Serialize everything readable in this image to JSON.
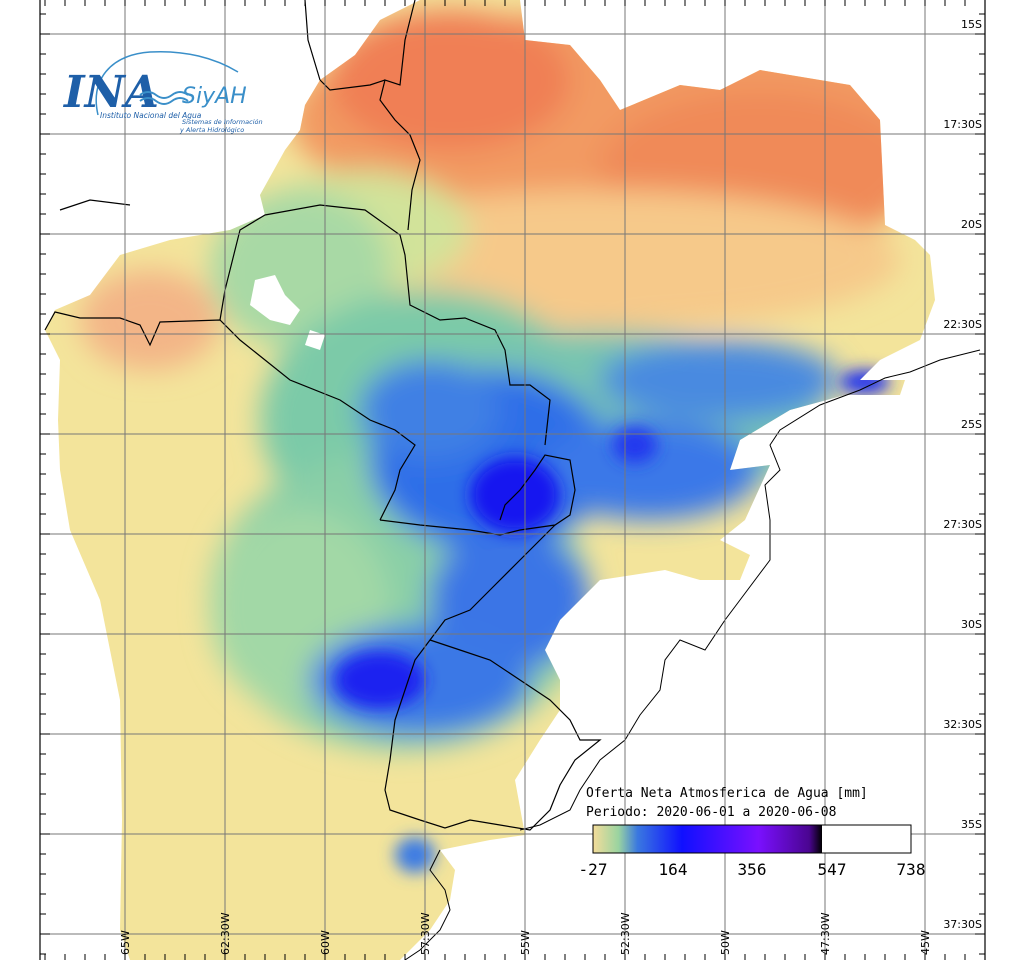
{
  "logo": {
    "org_abbrev": "INA",
    "org_name": "Instituto Nacional del Agua",
    "system_abbrev": "SiyAH",
    "system_line1": "Sistemas de Información",
    "system_line2": "y Alerta Hidrológico"
  },
  "legend": {
    "title": "Oferta Neta Atmosferica de Agua [mm]",
    "period": "Periodo: 2020-06-01 a 2020-06-08",
    "ticks": [
      "-27",
      "164",
      "356",
      "547",
      "738"
    ],
    "colors": [
      "#f4dc9a",
      "#5fbfa0",
      "#1f3df5",
      "#0a00ff",
      "#7a1fff",
      "#3a0080",
      "#000000"
    ]
  },
  "lat_labels": [
    "15S",
    "17:30S",
    "20S",
    "22:30S",
    "25S",
    "27:30S",
    "30S",
    "32:30S",
    "35S",
    "37:30S"
  ],
  "lon_labels": [
    "65W",
    "62:30W",
    "60W",
    "57:30W",
    "55W",
    "52:30W",
    "50W",
    "47:30W",
    "45W"
  ],
  "colors": {
    "dry": "#f6e49a",
    "warm": "#f4a56a",
    "hot": "#f07a55",
    "neutral": "#d8e59a",
    "moist": "#8ccfa5",
    "wet": "#2a6fe0",
    "verywet": "#1a2ef0",
    "extreme": "#4b10c8"
  }
}
